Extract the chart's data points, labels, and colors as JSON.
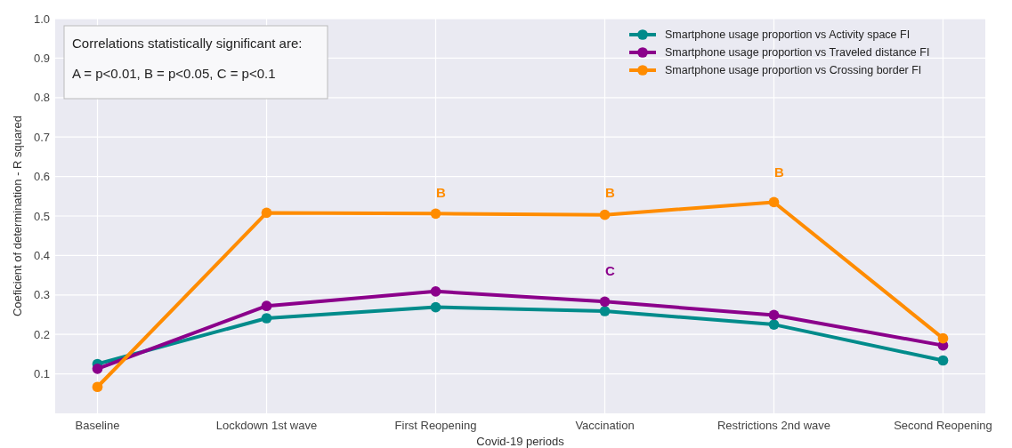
{
  "chart_data": {
    "type": "line",
    "xlabel": "Covid-19 periods",
    "ylabel": "Coeficient of determination - R squared",
    "categories": [
      "Baseline",
      "Lockdown 1st wave",
      "First Reopening",
      "Vaccination",
      "Restrictions 2nd wave",
      "Second Reopening"
    ],
    "series": [
      {
        "name": "Smartphone usage proportion vs Activity space FI",
        "color": "#008b8b",
        "values": [
          0.125,
          0.241,
          0.269,
          0.259,
          0.225,
          0.134
        ]
      },
      {
        "name": "Smartphone usage proportion vs Traveled distance FI",
        "color": "#8b008b",
        "values": [
          0.113,
          0.272,
          0.309,
          0.283,
          0.249,
          0.172
        ]
      },
      {
        "name": "Smartphone usage proportion vs Crossing border FI",
        "color": "#ff8c00",
        "values": [
          0.067,
          0.508,
          0.506,
          0.503,
          0.535,
          0.19
        ]
      }
    ],
    "ylim": [
      0,
      1.0
    ],
    "yticks": [
      0.1,
      0.2,
      0.3,
      0.4,
      0.5,
      0.6,
      0.7,
      0.8,
      0.9,
      {
        "value": 1.0,
        "label": "1.0"
      }
    ],
    "grid": true,
    "legend": "top right",
    "marker": "circle",
    "line_style": "solid",
    "annotations": [
      "Correlations statistically significant are:",
      "A = p<0.01,  B = p<0.05,  C = p<0.1",
      "B",
      "B",
      "B",
      "C"
    ]
  }
}
